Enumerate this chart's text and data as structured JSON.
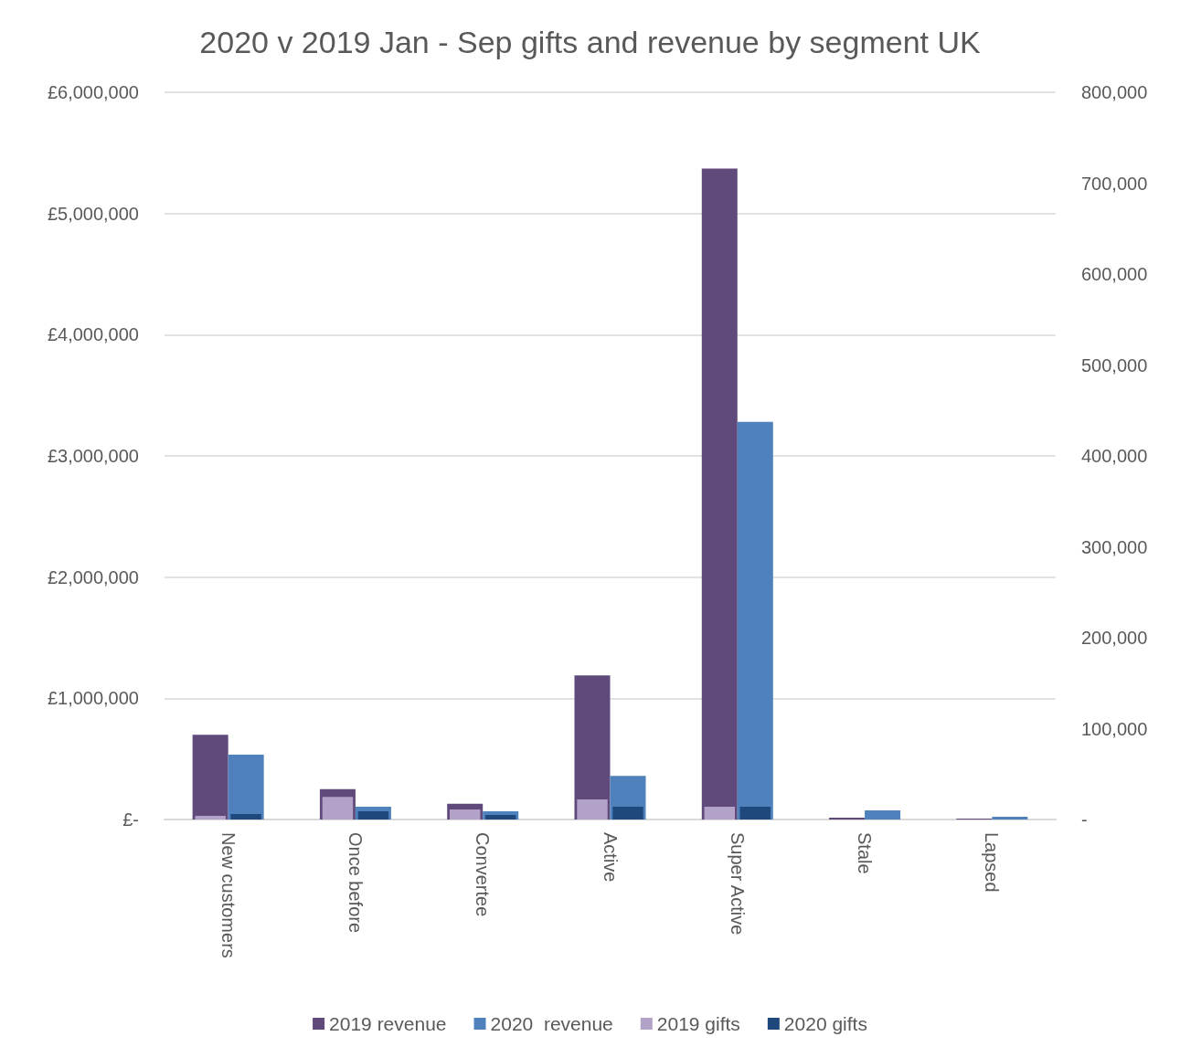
{
  "chart_data": {
    "type": "bar",
    "title": "2020 v 2019 Jan - Sep gifts and revenue by segment UK",
    "categories": [
      "New customers",
      "Once before",
      "Convertee",
      "Active",
      "Super Active",
      "Stale",
      "Lapsed"
    ],
    "series": [
      {
        "name": "2019 revenue",
        "color": "#604a7b",
        "values": [
          700000,
          250000,
          130000,
          1190000,
          5370000,
          15000,
          8000
        ]
      },
      {
        "name": "2020  revenue",
        "color": "#4f81bd",
        "values": [
          535000,
          105000,
          68000,
          360000,
          3280000,
          75000,
          22000
        ]
      },
      {
        "name": "2019 gifts",
        "color": "#b3a2c7",
        "axis": "y2",
        "values": [
          4000,
          25000,
          11000,
          22000,
          14000,
          0,
          0
        ]
      },
      {
        "name": "2020 gifts",
        "color": "#1f497d",
        "axis": "y2",
        "values": [
          6000,
          9000,
          5000,
          14000,
          14000,
          0,
          0
        ]
      }
    ],
    "ylim": [
      0,
      6000000
    ],
    "yticks": [
      {
        "value": 0,
        "label": "£-"
      },
      {
        "value": 1000000,
        "label": "£1,000,000"
      },
      {
        "value": 2000000,
        "label": "£2,000,000"
      },
      {
        "value": 3000000,
        "label": "£3,000,000"
      },
      {
        "value": 4000000,
        "label": "£4,000,000"
      },
      {
        "value": 5000000,
        "label": "£5,000,000"
      },
      {
        "value": 6000000,
        "label": "£6,000,000"
      }
    ],
    "y2lim": [
      0,
      800000
    ],
    "y2ticks": [
      {
        "value": 0,
        "label": "-"
      },
      {
        "value": 100000,
        "label": "100,000"
      },
      {
        "value": 200000,
        "label": "200,000"
      },
      {
        "value": 300000,
        "label": "300,000"
      },
      {
        "value": 400000,
        "label": "400,000"
      },
      {
        "value": 500000,
        "label": "500,000"
      },
      {
        "value": 600000,
        "label": "600,000"
      },
      {
        "value": 700000,
        "label": "700,000"
      },
      {
        "value": 800000,
        "label": "800,000"
      }
    ],
    "grid": "y",
    "legend": "bottom"
  }
}
